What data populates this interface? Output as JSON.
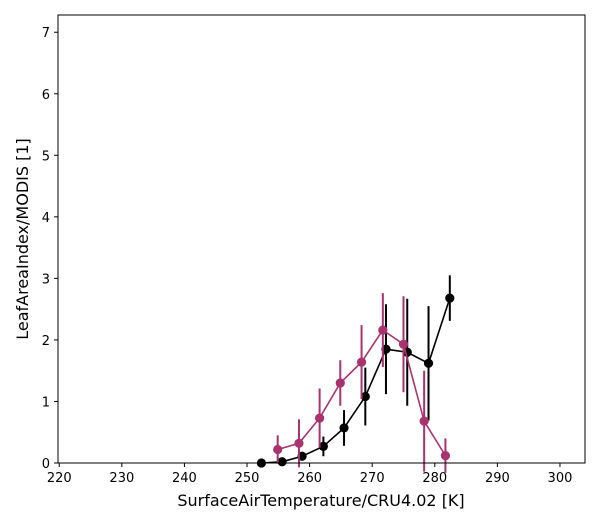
{
  "chart_data": {
    "type": "line",
    "xlabel": "SurfaceAirTemperature/CRU4.02 [K]",
    "ylabel": "LeafAreaIndex/MODIS [1]",
    "xlim": [
      219.8,
      304
    ],
    "ylim": [
      0,
      7.28
    ],
    "xticks": [
      220,
      230,
      240,
      250,
      260,
      270,
      280,
      290,
      300
    ],
    "yticks": [
      0,
      1,
      2,
      3,
      4,
      5,
      6,
      7
    ],
    "grid": false,
    "legend": "none",
    "series": [
      {
        "color": "#000000",
        "x": [
          252.3,
          255.6,
          258.8,
          262.2,
          265.5,
          268.9,
          272.2,
          275.6,
          279.0,
          282.4
        ],
        "y": [
          0.0,
          0.02,
          0.11,
          0.27,
          0.57,
          1.08,
          1.85,
          1.8,
          1.62,
          2.68
        ],
        "err": [
          0.0,
          0.03,
          0.07,
          0.16,
          0.29,
          0.47,
          0.73,
          0.87,
          0.93,
          0.37
        ]
      },
      {
        "color": "#a8336e",
        "x": [
          254.9,
          258.3,
          261.6,
          264.9,
          268.3,
          271.7,
          275.0,
          278.3,
          281.7
        ],
        "y": [
          0.22,
          0.32,
          0.73,
          1.3,
          1.64,
          2.16,
          1.93,
          0.68,
          0.12
        ],
        "err": [
          0.23,
          0.39,
          0.48,
          0.37,
          0.6,
          0.6,
          0.78,
          0.82,
          0.28
        ]
      }
    ]
  }
}
